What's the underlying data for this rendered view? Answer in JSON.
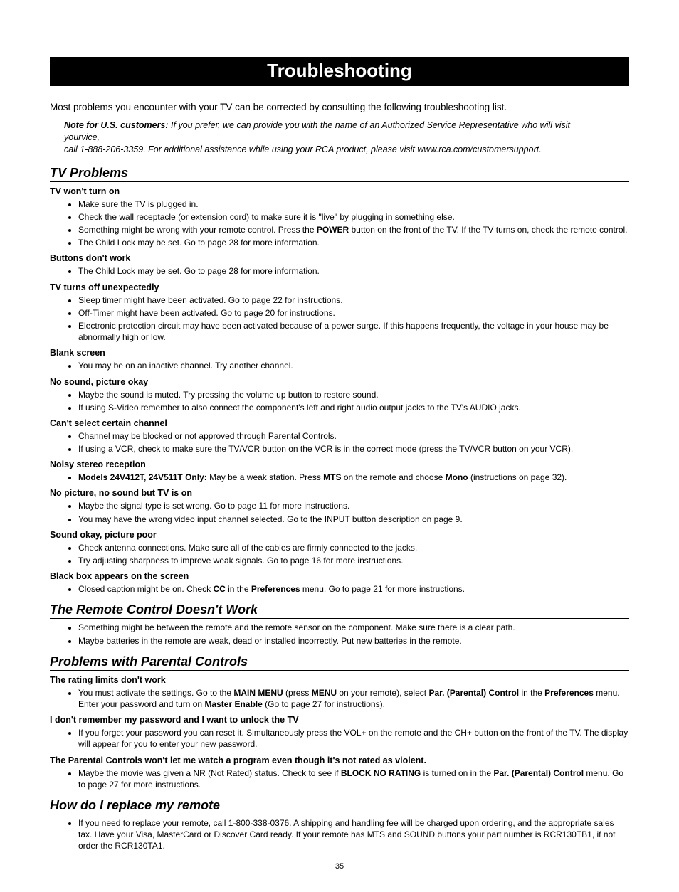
{
  "page": {
    "title": "Troubleshooting",
    "intro": "Most problems you encounter with your TV can be corrected by consulting the following troubleshooting list.",
    "note_lead": "Note for U.S. customers:",
    "note_line1a": "If you prefer, we can provide you with the name of an Authorized Service Representative who will visit",
    "note_line1b_left": "your",
    "note_line1b_right": "vice,",
    "note_line2": "call 1-888-206-3359. For additional assistance while using your RCA product, please visit www.rca.com/customersupport.",
    "page_number": "35"
  },
  "s1": {
    "heading": "TV Problems",
    "g1": {
      "title": "TV won't turn on",
      "i1": "Make sure the TV is plugged in.",
      "i2": "Check the wall receptacle (or extension cord) to make sure it is \"live\" by plugging in something else.",
      "i3a": "Something might be wrong with your remote control. Press the ",
      "i3b": "POWER",
      "i3c": " button on the front of the TV. If the TV turns on, check the remote control.",
      "i4": "The Child Lock may be set. Go to page 28 for more information."
    },
    "g2": {
      "title": "Buttons don't work",
      "i1": "The Child Lock may be set. Go to page 28 for more information."
    },
    "g3": {
      "title": "TV turns off unexpectedly",
      "i1": "Sleep timer might have been activated. Go to page 22 for instructions.",
      "i2": "Off-Timer might have been activated. Go to page 20 for instructions.",
      "i3": "Electronic protection circuit may have been activated because of a power surge. If this happens frequently, the voltage in your house may be abnormally high or low."
    },
    "g4": {
      "title": "Blank screen",
      "i1": "You may be on an inactive channel. Try another channel."
    },
    "g5": {
      "title": "No sound, picture okay",
      "i1": "Maybe the sound is muted. Try pressing the volume up button to restore sound.",
      "i2": "If using S-Video remember to also connect the component's left and right audio output jacks to the TV's AUDIO jacks."
    },
    "g6": {
      "title": "Can't select certain channel",
      "i1": "Channel may be blocked or not approved through Parental Controls.",
      "i2": "If using a VCR, check to make sure the TV/VCR button on the VCR is in the correct mode (press the TV/VCR button on your VCR)."
    },
    "g7": {
      "title": "Noisy stereo reception",
      "i1a": "Models 24V412T, 24V511T Only:",
      "i1b": " May be a weak station. Press ",
      "i1c": "MTS",
      "i1d": " on the remote and choose ",
      "i1e": "Mono",
      "i1f": " (instructions on page 32)."
    },
    "g8": {
      "title": "No picture, no sound but TV is on",
      "i1": "Maybe the signal type is set wrong. Go to page 11 for more instructions.",
      "i2": "You may have the wrong video input channel selected. Go to the INPUT button description on page 9."
    },
    "g9": {
      "title": "Sound okay, picture poor",
      "i1": "Check antenna connections. Make sure all of the cables are firmly connected to the jacks.",
      "i2": "Try adjusting sharpness to improve weak signals. Go to page 16 for more instructions."
    },
    "g10": {
      "title": "Black box appears on the screen",
      "i1a": "Closed caption might be on. Check ",
      "i1b": "CC",
      "i1c": " in the ",
      "i1d": "Preferences",
      "i1e": " menu. Go to page 21 for more instructions."
    }
  },
  "s2": {
    "heading": "The Remote Control Doesn't Work",
    "i1": "Something might be between the remote and the remote sensor on the component. Make sure there is a clear path.",
    "i2": "Maybe batteries in the remote are weak, dead or installed incorrectly. Put new batteries in the remote."
  },
  "s3": {
    "heading": "Problems with Parental Controls",
    "g1": {
      "title": "The rating limits don't work",
      "i1a": "You must activate the settings. Go to the ",
      "i1b": "MAIN MENU",
      "i1c": " (press ",
      "i1d": "MENU",
      "i1e": " on your remote), select ",
      "i1f": "Par. (Parental) Control",
      "i1g": " in the ",
      "i1h": "Preferences",
      "i1i": " menu. Enter your password and turn on ",
      "i1j": "Master Enable",
      "i1k": " (Go to page 27 for instructions)."
    },
    "g2": {
      "title": "I don't remember my password and I want to unlock the TV",
      "i1": "If you forget your password you can reset it. Simultaneously press the VOL+ on the remote and the CH+ button on the front of the TV. The display will appear for you to enter your new password."
    },
    "g3": {
      "title": "The Parental Controls won't let me watch a program even though it's not rated as violent.",
      "i1a": "Maybe the movie was given a NR (Not Rated) status. Check to see if ",
      "i1b": "BLOCK NO RATING",
      "i1c": " is turned on in the ",
      "i1d": "Par. (Parental) Control",
      "i1e": " menu. Go to page 27 for more instructions."
    }
  },
  "s4": {
    "heading": "How do I replace my remote",
    "i1": "If you need to replace your remote, call 1-800-338-0376. A shipping and handling fee will be charged upon ordering, and the appropriate sales tax. Have your Visa, MasterCard or Discover Card ready. If your remote has MTS and SOUND buttons your part number is RCR130TB1, if not order the RCR130TA1."
  }
}
